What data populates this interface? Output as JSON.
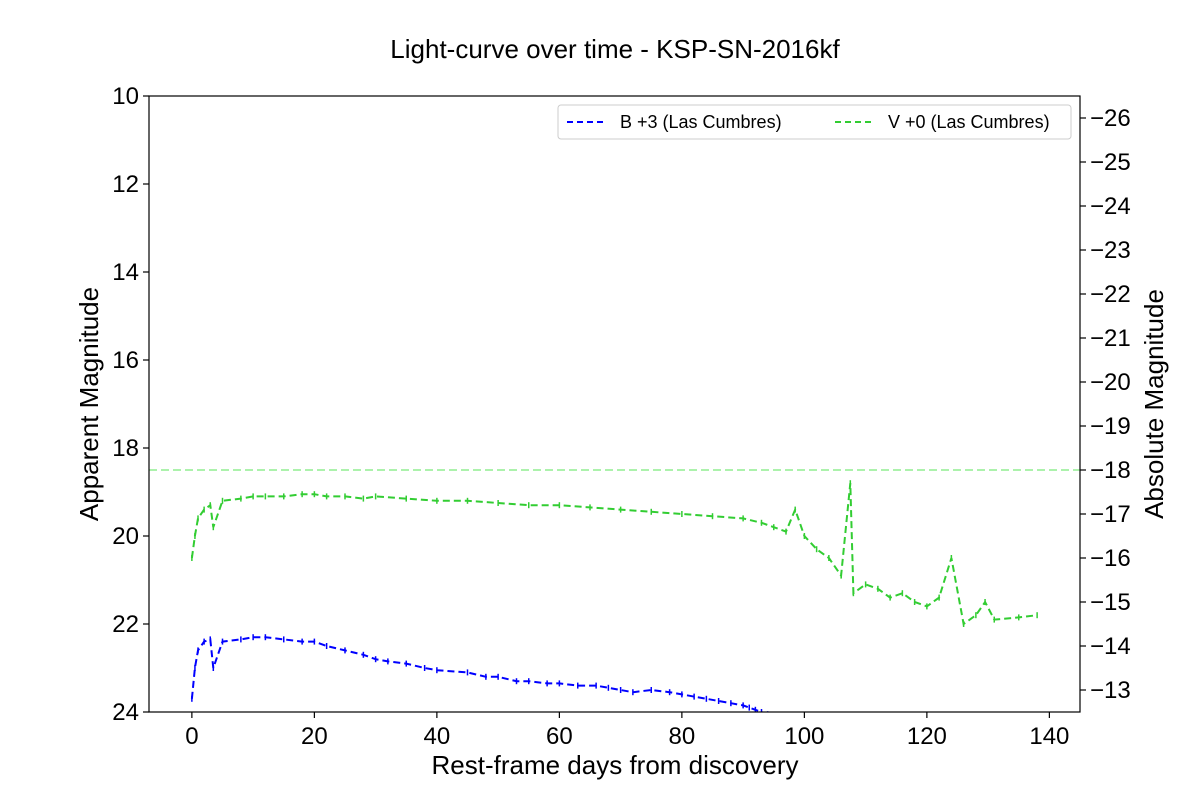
{
  "chart_data": {
    "type": "line",
    "title": "Light-curve over time - KSP-SN-2016kf",
    "xlabel": "Rest-frame days from discovery",
    "ylabel": "Apparent Magnitude",
    "y2label": "Absolute Magnitude",
    "xlim": [
      -7,
      145
    ],
    "ylim": [
      24,
      10
    ],
    "y2lim": [
      -12.5,
      -26.5
    ],
    "y_inverted": true,
    "x_ticks": [
      0,
      20,
      40,
      60,
      80,
      100,
      120,
      140
    ],
    "y_ticks": [
      10,
      12,
      14,
      16,
      18,
      20,
      22,
      24
    ],
    "y2_ticks": [
      -13,
      -14,
      -15,
      -16,
      -17,
      -18,
      -19,
      -20,
      -21,
      -22,
      -23,
      -24,
      -25,
      -26
    ],
    "grid": false,
    "legend_placement": "upper-right",
    "reference_line": {
      "y2": -18,
      "color": "#90ee90",
      "style": "dashed"
    },
    "series": [
      {
        "name": "B +3 (Las Cumbres)",
        "color": "#0000ff",
        "style": "dashed",
        "x": [
          0,
          0.5,
          1,
          2,
          3,
          3.5,
          5,
          8,
          10,
          12,
          15,
          18,
          20,
          22,
          25,
          28,
          30,
          32,
          35,
          38,
          40,
          45,
          48,
          50,
          53,
          55,
          58,
          60,
          63,
          66,
          68,
          70,
          72,
          75,
          78,
          80,
          82,
          84,
          86,
          88,
          90,
          91,
          92,
          93,
          94,
          96,
          98
        ],
        "y": [
          23.7,
          23.0,
          22.6,
          22.4,
          22.35,
          23.0,
          22.4,
          22.35,
          22.3,
          22.3,
          22.35,
          22.4,
          22.4,
          22.5,
          22.6,
          22.7,
          22.8,
          22.85,
          22.9,
          23.0,
          23.05,
          23.1,
          23.2,
          23.2,
          23.3,
          23.3,
          23.35,
          23.35,
          23.4,
          23.4,
          23.45,
          23.5,
          23.55,
          23.5,
          23.55,
          23.6,
          23.65,
          23.7,
          23.75,
          23.8,
          23.85,
          23.9,
          23.95,
          24.0,
          24.05,
          24.1,
          24.2
        ]
      },
      {
        "name": "V +0 (Las Cumbres)",
        "color": "#32cd32",
        "style": "dashed",
        "x": [
          0,
          0.5,
          1,
          2,
          3,
          3.5,
          5,
          8,
          10,
          12,
          15,
          18,
          20,
          22,
          25,
          28,
          30,
          35,
          40,
          45,
          50,
          55,
          60,
          65,
          70,
          75,
          80,
          85,
          90,
          93,
          95,
          97,
          98.5,
          100,
          102,
          104,
          106,
          107.5,
          108,
          110,
          112,
          114,
          116,
          118,
          120,
          122,
          124,
          126,
          128,
          129.5,
          131,
          135,
          138
        ],
        "y": [
          20.5,
          20.0,
          19.6,
          19.4,
          19.3,
          19.8,
          19.2,
          19.15,
          19.1,
          19.1,
          19.1,
          19.05,
          19.05,
          19.1,
          19.1,
          19.15,
          19.1,
          19.15,
          19.2,
          19.2,
          19.25,
          19.3,
          19.3,
          19.35,
          19.4,
          19.45,
          19.5,
          19.55,
          19.6,
          19.7,
          19.8,
          19.9,
          19.4,
          20.0,
          20.3,
          20.5,
          20.9,
          18.8,
          21.3,
          21.1,
          21.2,
          21.4,
          21.3,
          21.5,
          21.6,
          21.4,
          20.5,
          22.0,
          21.8,
          21.5,
          21.9,
          21.85,
          21.8
        ]
      }
    ]
  }
}
